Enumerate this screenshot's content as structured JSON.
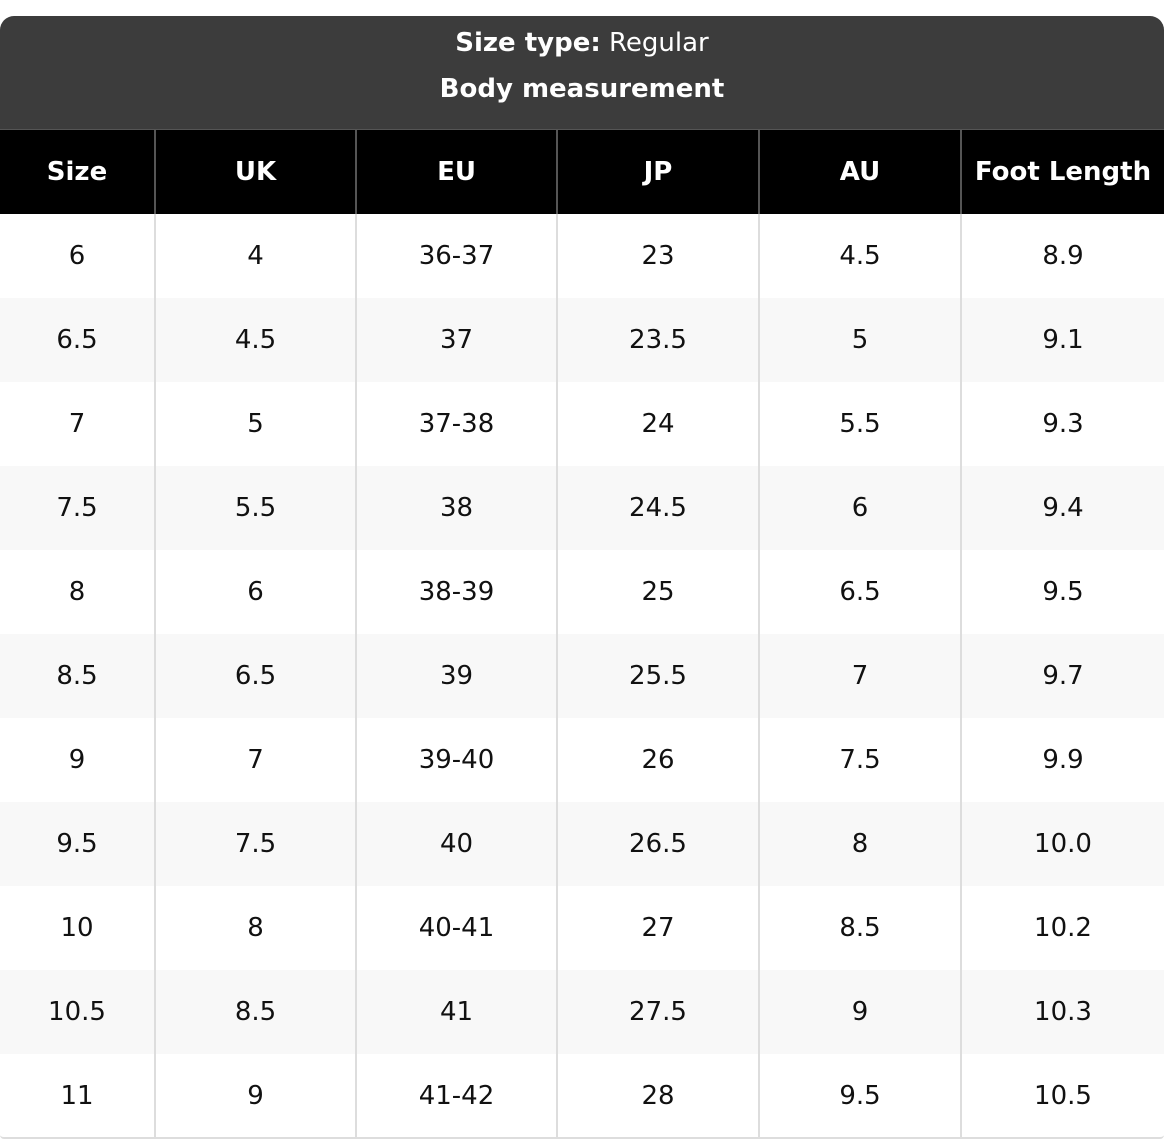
{
  "header": {
    "size_type_label": "Size type:",
    "size_type_value": "Regular",
    "title": "Body measurement"
  },
  "table": {
    "columns": [
      "Size",
      "UK",
      "EU",
      "JP",
      "AU",
      "Foot Length"
    ],
    "rows": [
      [
        "6",
        "4",
        "36-37",
        "23",
        "4.5",
        "8.9"
      ],
      [
        "6.5",
        "4.5",
        "37",
        "23.5",
        "5",
        "9.1"
      ],
      [
        "7",
        "5",
        "37-38",
        "24",
        "5.5",
        "9.3"
      ],
      [
        "7.5",
        "5.5",
        "38",
        "24.5",
        "6",
        "9.4"
      ],
      [
        "8",
        "6",
        "38-39",
        "25",
        "6.5",
        "9.5"
      ],
      [
        "8.5",
        "6.5",
        "39",
        "25.5",
        "7",
        "9.7"
      ],
      [
        "9",
        "7",
        "39-40",
        "26",
        "7.5",
        "9.9"
      ],
      [
        "9.5",
        "7.5",
        "40",
        "26.5",
        "8",
        "10.0"
      ],
      [
        "10",
        "8",
        "40-41",
        "27",
        "8.5",
        "10.2"
      ],
      [
        "10.5",
        "8.5",
        "41",
        "27.5",
        "9",
        "10.3"
      ],
      [
        "11",
        "9",
        "41-42",
        "28",
        "9.5",
        "10.5"
      ]
    ]
  }
}
